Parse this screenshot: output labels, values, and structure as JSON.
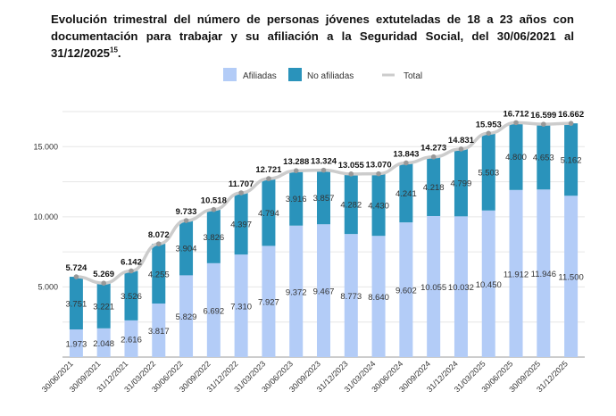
{
  "chart_data": {
    "type": "bar",
    "stacked": true,
    "title": "Evolución trimestral del número de personas jóvenes extuteladas de 18 a 23 años con documentación para trabajar y su afiliación a la Seguridad Social, del 30/06/2021 al 31/12/2025",
    "title_footnote": "15",
    "xlabel": "",
    "ylabel": "",
    "ylim": [
      0,
      17500
    ],
    "yticks": [
      "5.000",
      "10.000",
      "15.000"
    ],
    "ytick_values": [
      5000,
      10000,
      15000
    ],
    "grid": true,
    "legend_position": "top",
    "categories": [
      "30/06/2021",
      "30/09/2021",
      "31/12/2021",
      "31/03/2022",
      "30/06/2022",
      "30/09/2022",
      "31/12/2022",
      "31/03/2023",
      "30/06/2023",
      "30/09/2023",
      "31/12/2023",
      "31/03/2024",
      "30/06/2024",
      "30/09/2024",
      "31/12/2024",
      "31/03/2025",
      "30/06/2025",
      "30/09/2025",
      "31/12/2025"
    ],
    "series": [
      {
        "name": "Afiliadas",
        "type": "bar",
        "color": "#b3ccf7",
        "values": [
          1973,
          2048,
          2616,
          3817,
          5829,
          6692,
          7310,
          7927,
          9372,
          9467,
          8773,
          8640,
          9602,
          10055,
          10032,
          10450,
          11912,
          11946,
          11500
        ]
      },
      {
        "name": "No afiliadas",
        "type": "bar",
        "color": "#2a93bb",
        "values": [
          3751,
          3221,
          3526,
          4255,
          3904,
          3826,
          4397,
          4794,
          3916,
          3857,
          4282,
          4430,
          4241,
          4218,
          4799,
          5503,
          4800,
          4653,
          5162
        ]
      },
      {
        "name": "Total",
        "type": "line",
        "color": "#cccccc",
        "values": [
          5724,
          5269,
          6142,
          8072,
          9733,
          10518,
          11707,
          12721,
          13288,
          13324,
          13055,
          13070,
          13843,
          14273,
          14831,
          15953,
          16712,
          16599,
          16662
        ]
      }
    ]
  }
}
